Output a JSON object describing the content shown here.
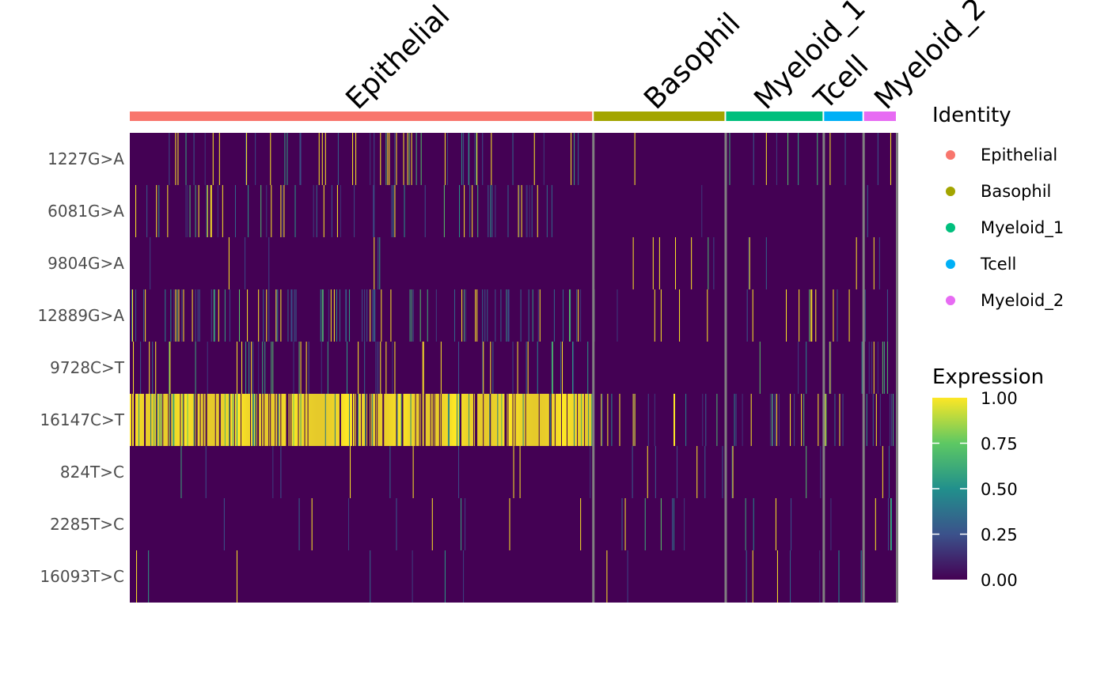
{
  "chart_data": {
    "type": "heatmap",
    "title": "",
    "rows": [
      "1227G>A",
      "6081G>A",
      "9804G>A",
      "12889G>A",
      "9728C>T",
      "16147C>T",
      "824T>C",
      "2285T>C",
      "16093T>C"
    ],
    "groups": [
      {
        "name": "Epithelial",
        "color": "#F8766D",
        "cells": 580
      },
      {
        "name": "Basophil",
        "color": "#A3A500",
        "cells": 164
      },
      {
        "name": "Myeloid_1",
        "color": "#00BF7D",
        "cells": 121
      },
      {
        "name": "Tcell",
        "color": "#00B0F6",
        "cells": 48
      },
      {
        "name": "Myeloid_2",
        "color": "#E76BF3",
        "cells": 40
      }
    ],
    "expressing_fraction_by_row_and_group": [
      [
        0.1,
        0.01,
        0.02,
        0.03,
        0.02
      ],
      [
        0.08,
        0.01,
        0.01,
        0.02,
        0.02
      ],
      [
        0.01,
        0.03,
        0.02,
        0.02,
        0.05
      ],
      [
        0.14,
        0.04,
        0.03,
        0.02,
        0.05
      ],
      [
        0.1,
        0.01,
        0.02,
        0.04,
        0.1
      ],
      [
        0.82,
        0.14,
        0.12,
        0.1,
        0.18
      ],
      [
        0.02,
        0.06,
        0.03,
        0.03,
        0.1
      ],
      [
        0.01,
        0.05,
        0.02,
        0.02,
        0.08
      ],
      [
        0.01,
        0.04,
        0.05,
        0.02,
        0.08
      ]
    ],
    "legend_identity": {
      "title": "Identity",
      "items": [
        "Epithelial",
        "Basophil",
        "Myeloid_1",
        "Tcell",
        "Myeloid_2"
      ]
    },
    "legend_expression": {
      "title": "Expression",
      "ticks": [
        "1.00",
        "0.75",
        "0.50",
        "0.25",
        "0.00"
      ],
      "range": [
        0,
        1
      ]
    },
    "colorscale": [
      "#440154",
      "#3B528B",
      "#21908C",
      "#5DC863",
      "#FDE725"
    ],
    "separator_color": "#808080"
  }
}
